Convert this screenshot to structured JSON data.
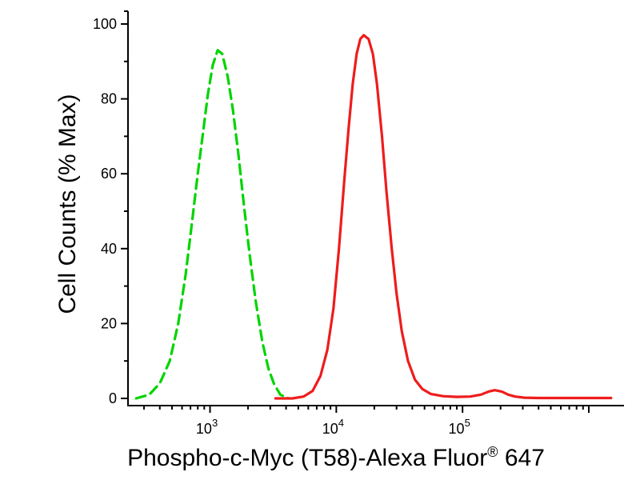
{
  "figure": {
    "background_color": "#ffffff",
    "axis_color": "#000000"
  },
  "chart_data": {
    "type": "line",
    "chart_kind": "flow-cytometry-histogram",
    "title": "",
    "xlabel": "Phospho-c-Myc (T58)-Alexa Fluor® 647",
    "xlabel_parts": {
      "main": "Phospho-c-Myc (T58)-Alexa Fluor",
      "sup": "®",
      "suffix": " 647"
    },
    "ylabel": "Cell Counts (% Max)",
    "x_scale": "log10",
    "xlim": [
      224,
      1900000
    ],
    "ylim": [
      0,
      100
    ],
    "grid": "off",
    "legend": "none",
    "y_major_ticks": [
      0,
      20,
      40,
      60,
      80,
      100
    ],
    "y_minor_ticks": [
      10,
      30,
      50,
      70,
      90
    ],
    "x_major_ticks": [
      {
        "value": 1000,
        "label_base": "10",
        "label_exp": "3"
      },
      {
        "value": 10000,
        "label_base": "10",
        "label_exp": "4"
      },
      {
        "value": 100000,
        "label_base": "10",
        "label_exp": "5"
      },
      {
        "value": 1000000,
        "label_base": "",
        "label_exp": ""
      }
    ],
    "series": [
      {
        "name": "control (green dashed)",
        "color": "#00d400",
        "line_style": "dashed",
        "peak_x": 1200,
        "peak_y": 93,
        "points": [
          [
            260,
            0
          ],
          [
            330,
            1
          ],
          [
            400,
            4
          ],
          [
            480,
            10
          ],
          [
            560,
            20
          ],
          [
            640,
            33
          ],
          [
            720,
            47
          ],
          [
            800,
            60
          ],
          [
            880,
            71
          ],
          [
            960,
            81
          ],
          [
            1050,
            89
          ],
          [
            1150,
            93
          ],
          [
            1250,
            92
          ],
          [
            1380,
            86
          ],
          [
            1520,
            77
          ],
          [
            1680,
            65
          ],
          [
            1850,
            52
          ],
          [
            2050,
            39
          ],
          [
            2300,
            26
          ],
          [
            2600,
            15
          ],
          [
            2900,
            8
          ],
          [
            3200,
            4
          ],
          [
            3600,
            1
          ],
          [
            4200,
            0
          ]
        ]
      },
      {
        "name": "Phospho-c-Myc (T58)-Alexa Fluor 647 (red solid)",
        "color": "#ee1c1c",
        "line_style": "solid",
        "peak_x": 16500,
        "peak_y": 97,
        "points": [
          [
            3300,
            0
          ],
          [
            4500,
            0
          ],
          [
            5500,
            0.5
          ],
          [
            6500,
            2
          ],
          [
            7500,
            6
          ],
          [
            8500,
            13
          ],
          [
            9500,
            24
          ],
          [
            10500,
            40
          ],
          [
            11500,
            57
          ],
          [
            12500,
            72
          ],
          [
            13500,
            84
          ],
          [
            14500,
            92
          ],
          [
            15500,
            96
          ],
          [
            16500,
            97
          ],
          [
            18000,
            96
          ],
          [
            19500,
            92
          ],
          [
            21000,
            84
          ],
          [
            23000,
            70
          ],
          [
            25000,
            55
          ],
          [
            27500,
            40
          ],
          [
            30000,
            28
          ],
          [
            33000,
            18
          ],
          [
            37000,
            10
          ],
          [
            42000,
            5
          ],
          [
            48000,
            2.5
          ],
          [
            56000,
            1.2
          ],
          [
            70000,
            0.6
          ],
          [
            90000,
            0.4
          ],
          [
            115000,
            0.5
          ],
          [
            140000,
            1
          ],
          [
            160000,
            1.8
          ],
          [
            180000,
            2.2
          ],
          [
            205000,
            1.8
          ],
          [
            230000,
            1
          ],
          [
            260000,
            0.5
          ],
          [
            310000,
            0.2
          ],
          [
            400000,
            0.1
          ],
          [
            600000,
            0.1
          ],
          [
            1000000,
            0.1
          ],
          [
            1500000,
            0.1
          ]
        ]
      }
    ]
  }
}
